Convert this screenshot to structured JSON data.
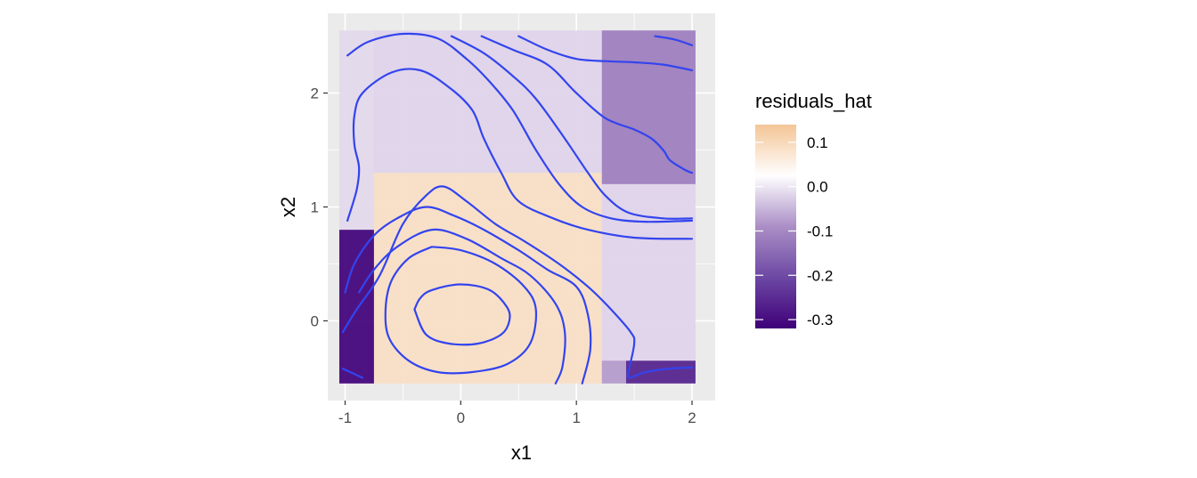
{
  "chart_data": {
    "type": "heatmap",
    "title": "",
    "xlabel": "x1",
    "ylabel": "x2",
    "xlim": [
      -1.15,
      2.2
    ],
    "ylim": [
      -0.7,
      2.7
    ],
    "x_ticks": [
      -1,
      0,
      1,
      2
    ],
    "y_ticks": [
      0,
      1,
      2
    ],
    "x_tick_labels": [
      "-1",
      "0",
      "1",
      "2"
    ],
    "y_tick_labels": [
      "0",
      "1",
      "2"
    ],
    "grid": true,
    "legend": {
      "title": "residuals_hat",
      "position": "right",
      "limits": [
        -0.32,
        0.14
      ],
      "breaks": [
        0.1,
        0.0,
        -0.1,
        -0.2,
        -0.3
      ],
      "break_labels": [
        "0.1",
        "0.0",
        "-0.1",
        "-0.2",
        "-0.3"
      ],
      "colors": [
        "#3f0079",
        "#6c48a3",
        "#ab8ec6",
        "#ffffff",
        "#f4c596"
      ]
    },
    "tiles": [
      {
        "x0": -1.05,
        "x1": -0.75,
        "y0": -0.55,
        "y1": 0.8,
        "value": -0.32
      },
      {
        "x0": -0.75,
        "x1": 1.22,
        "y0": -0.55,
        "y1": 1.3,
        "value": 0.09
      },
      {
        "x0": -1.05,
        "x1": -0.75,
        "y0": 0.8,
        "y1": 2.55,
        "value": -0.015
      },
      {
        "x0": -0.75,
        "x1": 1.22,
        "y0": 1.3,
        "y1": 2.55,
        "value": -0.02
      },
      {
        "x0": 1.22,
        "x1": 2.03,
        "y0": 1.2,
        "y1": 2.55,
        "value": -0.12
      },
      {
        "x0": 1.22,
        "x1": 2.03,
        "y0": -0.35,
        "y1": 1.2,
        "value": -0.02
      },
      {
        "x0": 1.22,
        "x1": 1.43,
        "y0": -0.55,
        "y1": -0.35,
        "value": -0.08
      },
      {
        "x0": 1.43,
        "x1": 2.03,
        "y0": -0.55,
        "y1": -0.35,
        "value": -0.27
      }
    ],
    "contours": [
      [
        [
          -0.4,
          0.1
        ],
        [
          -0.35,
          0.2
        ],
        [
          -0.25,
          0.27
        ],
        [
          0,
          0.32
        ],
        [
          0.25,
          0.27
        ],
        [
          0.4,
          0.12
        ],
        [
          0.42,
          0
        ],
        [
          0.35,
          -0.12
        ],
        [
          0.15,
          -0.2
        ],
        [
          -0.1,
          -0.2
        ],
        [
          -0.3,
          -0.12
        ],
        [
          -0.4,
          0.1
        ]
      ],
      [
        [
          -0.25,
          0.65
        ],
        [
          -0.45,
          0.55
        ],
        [
          -0.6,
          0.35
        ],
        [
          -0.65,
          0.1
        ],
        [
          -0.62,
          -0.15
        ],
        [
          -0.45,
          -0.35
        ],
        [
          -0.2,
          -0.45
        ],
        [
          0.1,
          -0.45
        ],
        [
          0.4,
          -0.38
        ],
        [
          0.6,
          -0.2
        ],
        [
          0.65,
          0.1
        ],
        [
          0.55,
          0.3
        ],
        [
          0.3,
          0.5
        ],
        [
          0,
          0.62
        ],
        [
          -0.25,
          0.65
        ]
      ],
      [
        [
          -0.88,
          0.25
        ],
        [
          -0.75,
          0.45
        ],
        [
          -0.55,
          0.65
        ],
        [
          -0.25,
          0.8
        ],
        [
          0.05,
          0.72
        ],
        [
          0.35,
          0.55
        ],
        [
          0.6,
          0.4
        ],
        [
          0.82,
          0.15
        ],
        [
          0.9,
          -0.1
        ],
        [
          0.88,
          -0.4
        ],
        [
          0.82,
          -0.55
        ]
      ],
      [
        [
          -1.0,
          0.25
        ],
        [
          -0.92,
          0.5
        ],
        [
          -0.75,
          0.75
        ],
        [
          -0.55,
          0.9
        ],
        [
          -0.3,
          1.0
        ],
        [
          -0.05,
          0.92
        ],
        [
          0.2,
          0.8
        ],
        [
          0.5,
          0.62
        ],
        [
          0.75,
          0.45
        ],
        [
          1.0,
          0.3
        ],
        [
          1.1,
          0.05
        ],
        [
          1.12,
          -0.25
        ],
        [
          1.05,
          -0.55
        ]
      ],
      [
        [
          -1.02,
          -0.1
        ],
        [
          -0.9,
          0.1
        ],
        [
          -0.7,
          0.4
        ],
        [
          -0.5,
          0.85
        ],
        [
          -0.3,
          1.1
        ],
        [
          -0.15,
          1.18
        ],
        [
          0.05,
          1.05
        ],
        [
          0.3,
          0.85
        ],
        [
          0.55,
          0.7
        ],
        [
          0.85,
          0.5
        ],
        [
          1.1,
          0.3
        ],
        [
          1.3,
          0.1
        ],
        [
          1.47,
          -0.1
        ],
        [
          1.5,
          -0.2
        ],
        [
          1.45,
          -0.45
        ],
        [
          1.45,
          -0.5
        ]
      ],
      [
        [
          -0.98,
          0.88
        ],
        [
          -0.9,
          1.15
        ],
        [
          -0.88,
          1.35
        ],
        [
          -0.92,
          1.55
        ],
        [
          -0.92,
          1.8
        ],
        [
          -0.85,
          2.0
        ],
        [
          -0.6,
          2.18
        ],
        [
          -0.35,
          2.2
        ],
        [
          -0.1,
          2.05
        ],
        [
          0.1,
          1.85
        ],
        [
          0.2,
          1.6
        ],
        [
          0.35,
          1.3
        ],
        [
          0.5,
          1.05
        ],
        [
          0.8,
          0.9
        ],
        [
          1.1,
          0.8
        ],
        [
          1.5,
          0.73
        ],
        [
          2.0,
          0.72
        ]
      ],
      [
        [
          -0.98,
          2.33
        ],
        [
          -0.8,
          2.45
        ],
        [
          -0.5,
          2.52
        ],
        [
          -0.2,
          2.48
        ],
        [
          0.05,
          2.3
        ],
        [
          0.25,
          2.1
        ],
        [
          0.45,
          1.85
        ],
        [
          0.65,
          1.5
        ],
        [
          0.85,
          1.2
        ],
        [
          1.05,
          1.0
        ],
        [
          1.3,
          0.9
        ],
        [
          1.6,
          0.87
        ],
        [
          2.0,
          0.88
        ]
      ],
      [
        [
          -0.08,
          2.5
        ],
        [
          0.2,
          2.35
        ],
        [
          0.45,
          2.15
        ],
        [
          0.65,
          1.95
        ],
        [
          0.9,
          1.6
        ],
        [
          1.1,
          1.3
        ],
        [
          1.25,
          1.1
        ],
        [
          1.45,
          0.95
        ],
        [
          1.75,
          0.9
        ],
        [
          2.0,
          0.9
        ]
      ],
      [
        [
          0.18,
          2.5
        ],
        [
          0.45,
          2.38
        ],
        [
          0.75,
          2.25
        ],
        [
          1.0,
          2.0
        ],
        [
          1.25,
          1.78
        ],
        [
          1.5,
          1.68
        ],
        [
          1.65,
          1.6
        ],
        [
          1.75,
          1.5
        ],
        [
          1.8,
          1.42
        ],
        [
          1.85,
          1.38
        ],
        [
          1.95,
          1.32
        ],
        [
          2.0,
          1.3
        ]
      ],
      [
        [
          0.5,
          2.5
        ],
        [
          0.75,
          2.38
        ],
        [
          1.0,
          2.3
        ],
        [
          1.25,
          2.28
        ],
        [
          1.5,
          2.27
        ],
        [
          1.75,
          2.25
        ],
        [
          2.0,
          2.2
        ]
      ],
      [
        [
          1.68,
          2.5
        ],
        [
          1.85,
          2.47
        ],
        [
          2.0,
          2.42
        ]
      ],
      [
        [
          -1.02,
          -0.42
        ],
        [
          -0.85,
          -0.5
        ]
      ],
      [
        [
          1.47,
          -0.5
        ],
        [
          1.6,
          -0.45
        ],
        [
          1.8,
          -0.42
        ],
        [
          2.0,
          -0.41
        ]
      ]
    ]
  }
}
